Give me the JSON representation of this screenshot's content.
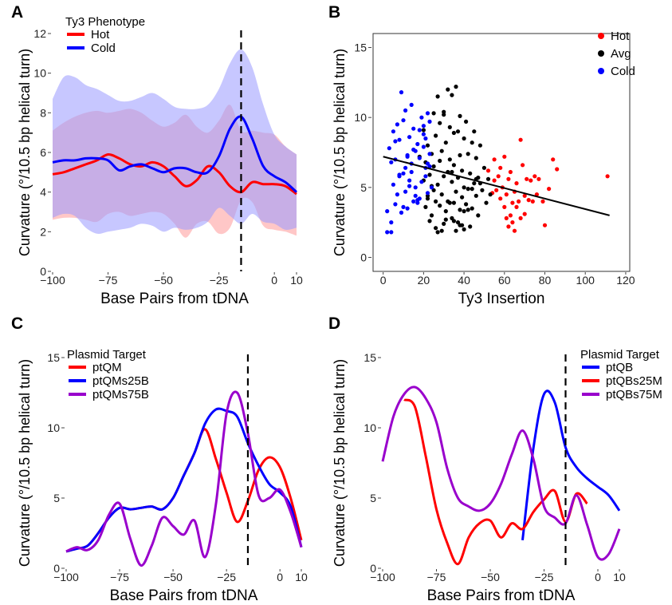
{
  "colors": {
    "red": "#ff0000",
    "blue": "#0000ff",
    "purple": "#9900cc",
    "black": "#000000",
    "hot_fill": "#ff9999",
    "cold_fill": "#9999ff"
  },
  "chart_data": [
    {
      "panel": "A",
      "type": "line",
      "xlabel": "Base Pairs from tDNA",
      "ylabel": "Curvature (°/10.5 bp helical turn)",
      "xlim": [
        -100,
        10
      ],
      "ylim": [
        0,
        12
      ],
      "xticks": [
        -100,
        -75,
        -50,
        -25,
        0,
        10
      ],
      "xtick_labels": [
        "−100",
        "−75",
        "−50",
        "−25",
        "0",
        "10"
      ],
      "yticks": [
        0,
        2,
        4,
        6,
        8,
        10,
        12
      ],
      "vline": -15,
      "legend": {
        "title": "Ty3 Phenotype",
        "position": "top-left"
      },
      "series": [
        {
          "name": "Hot",
          "color": "#ff0000",
          "fill": "#ff9999",
          "x": [
            -100,
            -95,
            -90,
            -85,
            -80,
            -75,
            -70,
            -65,
            -60,
            -55,
            -50,
            -45,
            -40,
            -35,
            -30,
            -25,
            -20,
            -15,
            -10,
            -5,
            0,
            5,
            10
          ],
          "values": [
            4.9,
            5.0,
            5.2,
            5.4,
            5.6,
            5.9,
            5.7,
            5.4,
            5.3,
            5.5,
            5.3,
            4.8,
            4.3,
            4.6,
            5.3,
            5.0,
            4.3,
            4.0,
            4.5,
            4.4,
            4.4,
            4.3,
            3.9
          ],
          "upper": [
            7.1,
            7.5,
            7.8,
            8.0,
            8.1,
            8.0,
            8.1,
            8.2,
            8.0,
            7.6,
            7.3,
            7.5,
            7.9,
            7.3,
            7.0,
            7.6,
            8.4,
            7.1,
            7.1,
            7.0,
            6.9,
            6.3,
            5.9
          ],
          "lower": [
            2.6,
            2.7,
            2.7,
            2.6,
            2.5,
            2.9,
            3.0,
            2.8,
            2.9,
            3.0,
            2.9,
            2.4,
            1.7,
            2.4,
            2.5,
            1.9,
            2.2,
            3.6,
            3.5,
            2.3,
            2.1,
            2.0,
            1.8
          ]
        },
        {
          "name": "Cold",
          "color": "#0000ff",
          "fill": "#9999ff",
          "x": [
            -100,
            -95,
            -90,
            -85,
            -80,
            -75,
            -70,
            -65,
            -60,
            -55,
            -50,
            -45,
            -40,
            -35,
            -30,
            -25,
            -20,
            -15,
            -10,
            -5,
            0,
            5,
            10
          ],
          "values": [
            5.5,
            5.6,
            5.6,
            5.7,
            5.7,
            5.6,
            5.1,
            5.3,
            5.4,
            5.2,
            5.0,
            5.2,
            5.2,
            5.0,
            5.0,
            5.8,
            7.2,
            7.8,
            6.7,
            5.3,
            4.8,
            4.5,
            4.0
          ],
          "upper": [
            8.7,
            9.8,
            9.8,
            9.4,
            9.2,
            8.9,
            8.6,
            8.6,
            8.8,
            9.0,
            8.7,
            8.3,
            8.2,
            8.2,
            8.4,
            9.2,
            10.5,
            11.2,
            10.3,
            8.4,
            6.9,
            6.3,
            5.9
          ],
          "lower": [
            2.7,
            2.9,
            2.8,
            2.2,
            1.9,
            2.0,
            2.1,
            2.2,
            2.4,
            2.3,
            2.0,
            2.2,
            2.1,
            2.2,
            2.5,
            3.2,
            2.8,
            2.4,
            2.9,
            2.5,
            2.4,
            2.1,
            2.2
          ]
        }
      ]
    },
    {
      "panel": "B",
      "type": "scatter",
      "xlabel": "Ty3 Insertion",
      "ylabel": "Curvature (°/10.5 bp helical turn)",
      "xlim": [
        -5,
        122
      ],
      "ylim": [
        -1,
        16
      ],
      "xticks": [
        0,
        20,
        40,
        60,
        80,
        100,
        120
      ],
      "yticks": [
        0,
        5,
        10,
        15
      ],
      "legend": {
        "position": "top-right"
      },
      "regression": {
        "x": [
          0,
          112
        ],
        "y": [
          7.2,
          3.0
        ]
      },
      "series": [
        {
          "name": "Hot",
          "color": "#ff0000",
          "x": [
            52,
            54,
            55,
            55,
            56,
            57,
            58,
            58,
            59,
            60,
            60,
            61,
            61,
            62,
            62,
            63,
            63,
            64,
            64,
            65,
            65,
            66,
            66,
            67,
            68,
            68,
            69,
            70,
            70,
            71,
            72,
            73,
            74,
            75,
            76,
            77,
            79,
            80,
            82,
            84,
            86,
            111
          ],
          "y": [
            6.2,
            4.6,
            7.0,
            5.5,
            4.8,
            5.8,
            4.2,
            6.4,
            5.0,
            3.6,
            7.2,
            2.8,
            4.5,
            2.2,
            5.6,
            3.0,
            6.1,
            3.9,
            2.5,
            4.7,
            1.9,
            5.3,
            3.6,
            4.0,
            2.8,
            8.4,
            6.6,
            4.4,
            3.1,
            5.6,
            4.1,
            5.5,
            4.0,
            5.8,
            4.5,
            5.6,
            4.0,
            2.3,
            4.9,
            7.0,
            6.3,
            5.8
          ]
        },
        {
          "name": "Avg",
          "color": "#000000",
          "x": [
            18,
            20,
            20,
            21,
            21,
            22,
            22,
            23,
            23,
            24,
            24,
            25,
            25,
            25,
            26,
            26,
            27,
            27,
            28,
            28,
            28,
            29,
            29,
            30,
            30,
            30,
            31,
            31,
            32,
            32,
            32,
            33,
            33,
            34,
            34,
            34,
            35,
            35,
            35,
            36,
            36,
            37,
            37,
            37,
            38,
            38,
            38,
            39,
            39,
            40,
            40,
            40,
            41,
            41,
            42,
            42,
            43,
            43,
            44,
            44,
            45,
            45,
            46,
            46,
            47,
            47,
            48,
            49,
            50,
            51,
            52,
            53,
            27,
            29,
            31,
            33,
            35,
            24,
            26,
            36,
            38,
            40,
            42,
            44,
            46,
            48,
            22,
            30,
            34,
            39
          ],
          "y": [
            7.2,
            5.5,
            9.1,
            3.6,
            6.8,
            4.2,
            8.0,
            2.6,
            5.9,
            7.4,
            3.0,
            10.3,
            4.8,
            6.5,
            8.7,
            2.1,
            5.2,
            11.5,
            3.7,
            6.9,
            9.6,
            4.5,
            7.6,
            2.4,
            5.8,
            10.4,
            3.3,
            8.2,
            6.1,
            12.0,
            4.0,
            7.0,
            9.3,
            2.8,
            5.4,
            11.6,
            3.9,
            6.6,
            8.9,
            4.7,
            12.2,
            2.5,
            5.7,
            9.0,
            3.4,
            7.3,
            10.1,
            4.3,
            6.2,
            2.0,
            5.0,
            8.5,
            3.8,
            9.7,
            4.9,
            7.4,
            2.2,
            6.0,
            8.2,
            3.5,
            5.3,
            9.0,
            4.4,
            7.1,
            3.0,
            5.7,
            8.0,
            4.8,
            6.4,
            3.9,
            5.6,
            4.5,
            1.8,
            1.9,
            2.7,
            3.9,
            2.6,
            5.1,
            4.0,
            1.9,
            2.3,
            3.3,
            3.4,
            4.9,
            5.6,
            5.3,
            4.4,
            10.2,
            6.1,
            2.3
          ]
        },
        {
          "name": "Cold",
          "color": "#0000ff",
          "x": [
            2,
            2,
            3,
            4,
            4,
            5,
            5,
            6,
            6,
            7,
            7,
            8,
            8,
            9,
            9,
            10,
            10,
            11,
            11,
            12,
            12,
            13,
            13,
            14,
            14,
            15,
            15,
            16,
            16,
            17,
            17,
            18,
            18,
            19,
            19,
            20,
            20,
            21,
            21,
            22,
            22,
            23,
            23,
            24,
            4,
            6,
            8,
            10,
            12,
            14,
            16,
            18,
            20,
            22,
            11,
            13,
            15,
            17,
            21,
            23
          ],
          "y": [
            1.8,
            3.3,
            7.8,
            6.8,
            2.5,
            5.2,
            9.0,
            3.8,
            7.0,
            4.5,
            9.5,
            5.8,
            8.4,
            3.2,
            11.8,
            6.0,
            9.8,
            4.7,
            10.5,
            7.2,
            3.5,
            8.6,
            5.5,
            10.9,
            6.7,
            4.0,
            9.2,
            7.6,
            5.0,
            8.1,
            3.9,
            7.1,
            4.2,
            10.0,
            5.4,
            7.9,
            9.4,
            8.5,
            5.8,
            4.6,
            10.3,
            6.5,
            7.4,
            5.0,
            1.8,
            8.3,
            5.9,
            3.6,
            7.3,
            6.1,
            4.4,
            9.1,
            8.8,
            6.7,
            6.4,
            5.1,
            7.7,
            4.1,
            6.4,
            9.7
          ]
        }
      ]
    },
    {
      "panel": "C",
      "type": "line",
      "xlabel": "Base Pairs from tDNA",
      "ylabel": "Curvature (°/10.5 bp helical turn)",
      "xlim": [
        -100,
        10
      ],
      "ylim": [
        0,
        15
      ],
      "xticks": [
        -100,
        -75,
        -50,
        -25,
        0,
        10
      ],
      "xtick_labels": [
        "−100",
        "−75",
        "−50",
        "−25",
        "0",
        "10"
      ],
      "yticks": [
        0,
        5,
        10,
        15
      ],
      "vline": -15,
      "legend": {
        "title": "Plasmid Target",
        "position": "top-left"
      },
      "series": [
        {
          "name": "ptQM",
          "color": "#ff0000",
          "x": [
            -100,
            -95,
            -90,
            -85,
            -80,
            -75,
            -70,
            -65,
            -60,
            -55,
            -50,
            -45,
            -40,
            -35,
            -30,
            -25,
            -20,
            -15,
            -10,
            -5,
            0,
            5,
            10
          ],
          "values": [
            1.2,
            1.4,
            1.6,
            2.5,
            3.6,
            4.3,
            4.2,
            4.3,
            4.4,
            4.2,
            5.0,
            6.6,
            8.2,
            9.9,
            7.8,
            5.4,
            3.3,
            4.8,
            7.0,
            7.9,
            7.2,
            5.0,
            2.0
          ]
        },
        {
          "name": "ptQMs25B",
          "color": "#0000ff",
          "x": [
            -100,
            -95,
            -90,
            -85,
            -80,
            -75,
            -70,
            -65,
            -60,
            -55,
            -50,
            -45,
            -40,
            -35,
            -30,
            -25,
            -20,
            -15,
            -10,
            -5,
            0,
            5,
            10
          ],
          "values": [
            1.2,
            1.4,
            1.6,
            2.5,
            3.6,
            4.3,
            4.2,
            4.3,
            4.4,
            4.2,
            5.0,
            6.6,
            8.2,
            10.3,
            11.3,
            11.2,
            10.8,
            8.9,
            7.3,
            6.0,
            5.4,
            4.4,
            1.5
          ]
        },
        {
          "name": "ptQMs75B",
          "color": "#9900cc",
          "x": [
            -100,
            -95,
            -90,
            -85,
            -80,
            -75,
            -70,
            -65,
            -60,
            -55,
            -50,
            -45,
            -40,
            -35,
            -30,
            -25,
            -20,
            -15,
            -10,
            -5,
            0,
            5,
            10
          ],
          "values": [
            1.2,
            1.5,
            1.3,
            2.0,
            3.8,
            4.6,
            2.1,
            0.2,
            1.6,
            3.6,
            3.0,
            2.4,
            3.4,
            0.8,
            4.5,
            11.0,
            12.5,
            9.6,
            5.2,
            5.0,
            5.6,
            4.0,
            1.5
          ]
        }
      ]
    },
    {
      "panel": "D",
      "type": "line",
      "xlabel": "Base Pairs from tDNA",
      "ylabel": "Curvature (°/10.5 bp helical turn)",
      "xlim": [
        -100,
        10
      ],
      "ylim": [
        0,
        15
      ],
      "xticks": [
        -100,
        -75,
        -50,
        -25,
        0,
        10
      ],
      "xtick_labels": [
        "−100",
        "−75",
        "−50",
        "−25",
        "0",
        "10"
      ],
      "yticks": [
        0,
        5,
        10,
        15
      ],
      "vline": -15,
      "legend": {
        "title": "Plasmid Target",
        "position": "top-right"
      },
      "series": [
        {
          "name": "ptQB",
          "color": "#0000ff",
          "x": [
            -35,
            -30,
            -25,
            -20,
            -15,
            -10,
            -5,
            0,
            5,
            10
          ],
          "values": [
            2.0,
            8.5,
            12.4,
            11.8,
            8.6,
            7.2,
            6.4,
            5.8,
            5.2,
            4.1
          ]
        },
        {
          "name": "ptQBs25M",
          "color": "#ff0000",
          "x": [
            -90,
            -85,
            -80,
            -75,
            -70,
            -65,
            -60,
            -55,
            -50,
            -45,
            -40,
            -35,
            -30,
            -25,
            -20,
            -15,
            -10,
            -5
          ],
          "values": [
            12.0,
            11.5,
            8.0,
            4.2,
            1.8,
            0.3,
            2.2,
            3.2,
            3.4,
            2.2,
            3.2,
            2.8,
            4.0,
            4.9,
            5.5,
            3.3,
            5.3,
            4.6
          ]
        },
        {
          "name": "ptQBs75M",
          "color": "#9900cc",
          "x": [
            -100,
            -95,
            -90,
            -85,
            -80,
            -75,
            -70,
            -65,
            -60,
            -55,
            -50,
            -45,
            -40,
            -35,
            -30,
            -25,
            -20,
            -15,
            -10,
            -5,
            0,
            5,
            10
          ],
          "values": [
            7.6,
            10.8,
            12.4,
            12.9,
            12.1,
            10.4,
            7.1,
            5.0,
            4.4,
            4.1,
            4.6,
            6.0,
            8.1,
            9.8,
            7.8,
            4.4,
            3.6,
            3.2,
            5.2,
            3.1,
            0.8,
            1.0,
            2.8
          ]
        }
      ]
    }
  ]
}
